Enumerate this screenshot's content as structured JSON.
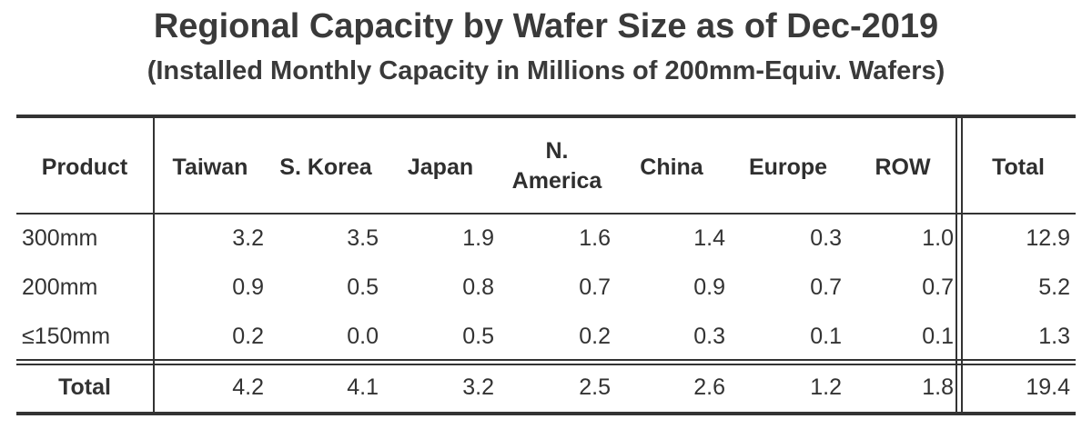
{
  "chart_data": {
    "type": "table",
    "title": "Regional Capacity by Wafer Size as of Dec-2019",
    "subtitle": "(Installed Monthly Capacity in Millions of 200mm-Equiv. Wafers)",
    "columns": [
      "Product",
      "Taiwan",
      "S. Korea",
      "Japan",
      "N.\nAmerica",
      "China",
      "Europe",
      "ROW",
      "Total"
    ],
    "rows": [
      {
        "label": "300mm",
        "values": [
          "3.2",
          "3.5",
          "1.9",
          "1.6",
          "1.4",
          "0.3",
          "1.0",
          "12.9"
        ]
      },
      {
        "label": "200mm",
        "values": [
          "0.9",
          "0.5",
          "0.8",
          "0.7",
          "0.9",
          "0.7",
          "0.7",
          "5.2"
        ]
      },
      {
        "label": "≤150mm",
        "values": [
          "0.2",
          "0.0",
          "0.5",
          "0.2",
          "0.3",
          "0.1",
          "0.1",
          "1.3"
        ]
      }
    ],
    "total_row": {
      "label": "Total",
      "values": [
        "4.2",
        "4.1",
        "3.2",
        "2.5",
        "2.6",
        "1.2",
        "1.8",
        "19.4"
      ]
    }
  }
}
